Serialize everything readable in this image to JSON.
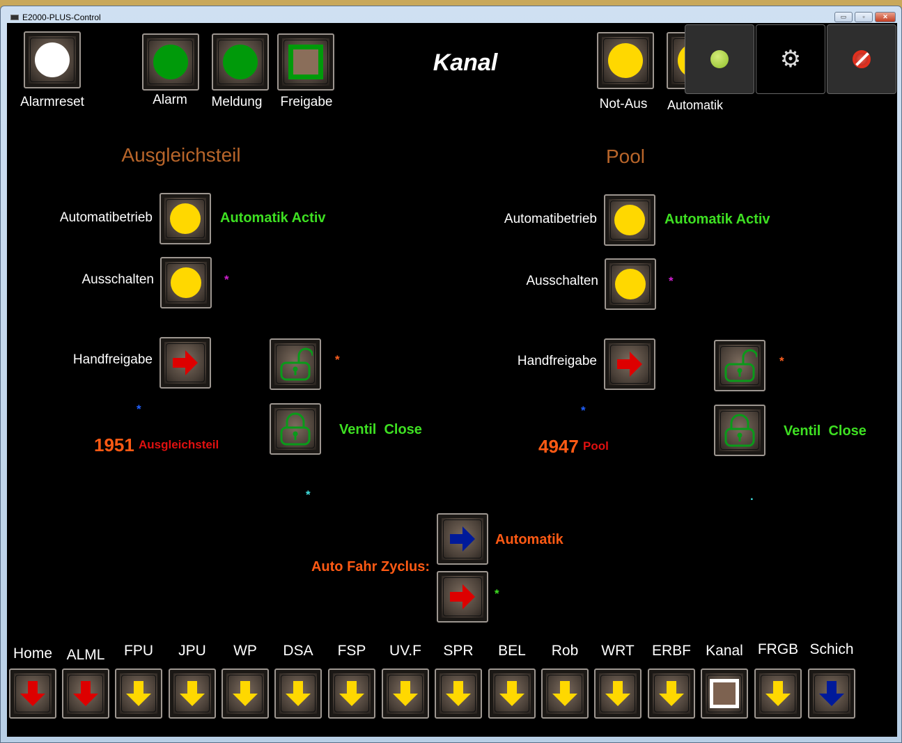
{
  "window": {
    "title": "E2000-PLUS-Control",
    "minimize": "▭",
    "restore": "▫",
    "close": "✕"
  },
  "top": {
    "alarmreset": "Alarmreset",
    "alarm": "Alarm",
    "meldung": "Meldung",
    "freigabe": "Freigabe",
    "title": "Kanal",
    "notaus": "Not-Aus",
    "automatik": "Automatik"
  },
  "left": {
    "heading": "Ausgleichsteil",
    "auto_label": "Automatibetrieb",
    "auto_status": "Automatik Activ",
    "aus_label": "Ausschalten",
    "aus_star": "*",
    "hand_label": "Handfreigabe",
    "lock_star": "*",
    "blue_star": "*",
    "count": "1951",
    "count_name": "Ausgleichsteil",
    "ventil": "Ventil  Close",
    "cyan_mark": "*"
  },
  "right": {
    "heading": "Pool",
    "auto_label": "Automatibetrieb",
    "auto_status": "Automatik Activ",
    "aus_label": "Ausschalten",
    "aus_star": "*",
    "hand_label": "Handfreigabe",
    "lock_star": "*",
    "blue_star": "*",
    "count": "4947",
    "count_name": "Pool",
    "ventil": "Ventil  Close",
    "cyan_mark": "."
  },
  "cycle": {
    "label": "Auto Fahr Zyclus:",
    "mode": "Automatik",
    "star": "*"
  },
  "colors": {
    "yellow": "#ffd800",
    "green": "#009a0a",
    "red": "#dd0000",
    "blue": "#001a9a",
    "heading": "#b8652a",
    "orange": "#ff5a14"
  },
  "nav": [
    {
      "label": "Home",
      "arrow": "red"
    },
    {
      "label": "ALML",
      "arrow": "red"
    },
    {
      "label": "FPU",
      "arrow": "yellow"
    },
    {
      "label": "JPU",
      "arrow": "yellow"
    },
    {
      "label": "WP",
      "arrow": "yellow"
    },
    {
      "label": "DSA",
      "arrow": "yellow"
    },
    {
      "label": "FSP",
      "arrow": "yellow"
    },
    {
      "label": "UV.F",
      "arrow": "yellow"
    },
    {
      "label": "SPR",
      "arrow": "yellow"
    },
    {
      "label": "BEL",
      "arrow": "yellow"
    },
    {
      "label": "Rob",
      "arrow": "yellow"
    },
    {
      "label": "WRT",
      "arrow": "yellow"
    },
    {
      "label": "ERBF",
      "arrow": "yellow"
    },
    {
      "label": "Kanal",
      "arrow": "square"
    },
    {
      "label": "FRGB",
      "arrow": "yellow"
    },
    {
      "label": "Schich",
      "arrow": "blue"
    }
  ]
}
